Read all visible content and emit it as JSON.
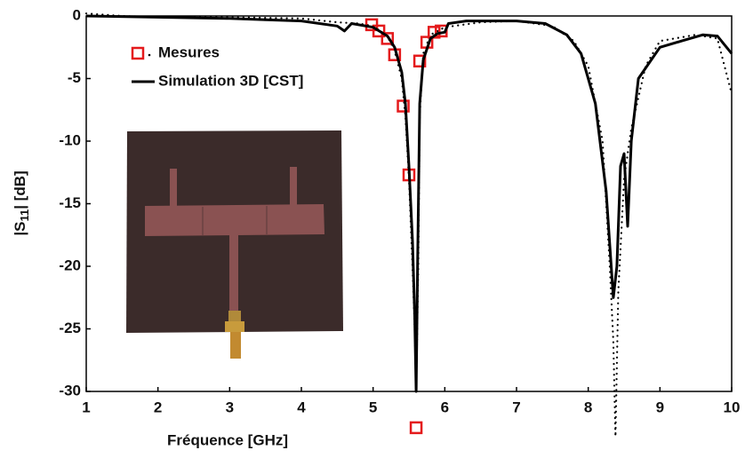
{
  "chart_data": {
    "type": "line",
    "xlabel": "Fréquence [GHz]",
    "ylabel": {
      "prefix": "|S",
      "sub": "11",
      "suffix": "| [dB]"
    },
    "xlim": [
      1,
      10
    ],
    "ylim": [
      -30,
      0
    ],
    "xticks": [
      1,
      2,
      3,
      4,
      5,
      6,
      7,
      8,
      9,
      10
    ],
    "yticks": [
      0,
      -5,
      -10,
      -15,
      -20,
      -25,
      -30
    ],
    "series": [
      {
        "name": "Mesures",
        "color": "#000000",
        "style": "dotted",
        "marker_color": "#e41a1c",
        "x": [
          1,
          1.5,
          2,
          3,
          4,
          4.5,
          4.8,
          5,
          5.2,
          5.3,
          5.4,
          5.45,
          5.5,
          5.55,
          5.58,
          5.6,
          5.63,
          5.65,
          5.7,
          5.8,
          6,
          6.5,
          7,
          7.5,
          7.8,
          8,
          8.2,
          8.3,
          8.35,
          8.38,
          8.42,
          8.5,
          8.6,
          8.8,
          9,
          9.5,
          9.8,
          10
        ],
        "values": [
          0.2,
          0,
          -0.1,
          -0.1,
          -0.2,
          -0.5,
          -0.6,
          -0.8,
          -1.6,
          -2.8,
          -5,
          -8,
          -13,
          -20,
          -25,
          -30,
          -20,
          -8,
          -3,
          -1.5,
          -0.9,
          -0.5,
          -0.4,
          -0.8,
          -2,
          -4,
          -10,
          -20,
          -26,
          -33.6,
          -22,
          -13,
          -9,
          -4,
          -2,
          -1.5,
          -1.8,
          -6.2
        ],
        "markers": {
          "x": [
            4.98,
            5.08,
            5.2,
            5.3,
            5.42,
            5.5,
            5.6,
            5.65,
            5.75,
            5.85,
            5.95
          ],
          "values": [
            -0.7,
            -1.2,
            -1.8,
            -3.1,
            -7.2,
            -12.7,
            -32.9,
            -3.6,
            -2.1,
            -1.3,
            -1.2
          ]
        }
      },
      {
        "name": "Simulation 3D [CST]",
        "color": "#000000",
        "style": "solid",
        "x": [
          1,
          2,
          3,
          3.5,
          4,
          4.5,
          4.6,
          4.7,
          5,
          5.2,
          5.3,
          5.4,
          5.45,
          5.5,
          5.55,
          5.58,
          5.6,
          5.62,
          5.65,
          5.7,
          5.8,
          5.9,
          6,
          6.05,
          6.3,
          7,
          7.4,
          7.7,
          7.9,
          8.1,
          8.25,
          8.35,
          8.4,
          8.45,
          8.5,
          8.55,
          8.6,
          8.7,
          9,
          9.3,
          9.6,
          9.8,
          10
        ],
        "values": [
          0,
          -0.1,
          -0.2,
          -0.3,
          -0.4,
          -0.8,
          -1.2,
          -0.6,
          -0.9,
          -1.6,
          -2.5,
          -4.5,
          -7,
          -12,
          -18,
          -24,
          -30,
          -20,
          -7,
          -3.5,
          -1.8,
          -1.4,
          -1.3,
          -0.6,
          -0.4,
          -0.4,
          -0.6,
          -1.5,
          -3,
          -7,
          -14,
          -22.5,
          -20,
          -12,
          -11,
          -16.8,
          -10,
          -5,
          -2.5,
          -2,
          -1.5,
          -1.6,
          -3
        ]
      }
    ]
  }
}
